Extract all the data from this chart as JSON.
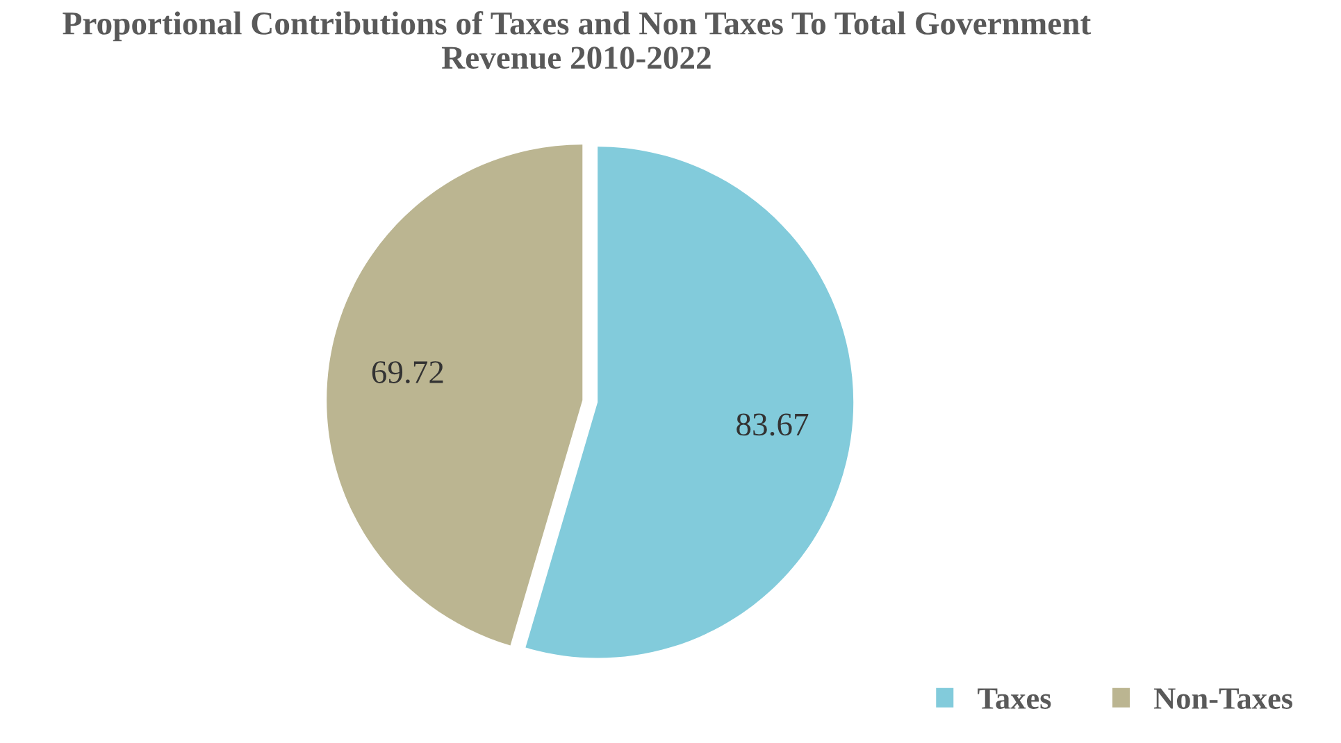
{
  "chart_data": {
    "type": "pie",
    "title": "Proportional Contributions of Taxes and Non Taxes To Total Government Revenue 2010-2022",
    "categories": [
      "Taxes",
      "Non-Taxes"
    ],
    "values": [
      83.67,
      69.72
    ],
    "colors": [
      "#82cbdb",
      "#bbb591"
    ],
    "data_labels": true,
    "legend": "bottom right"
  }
}
